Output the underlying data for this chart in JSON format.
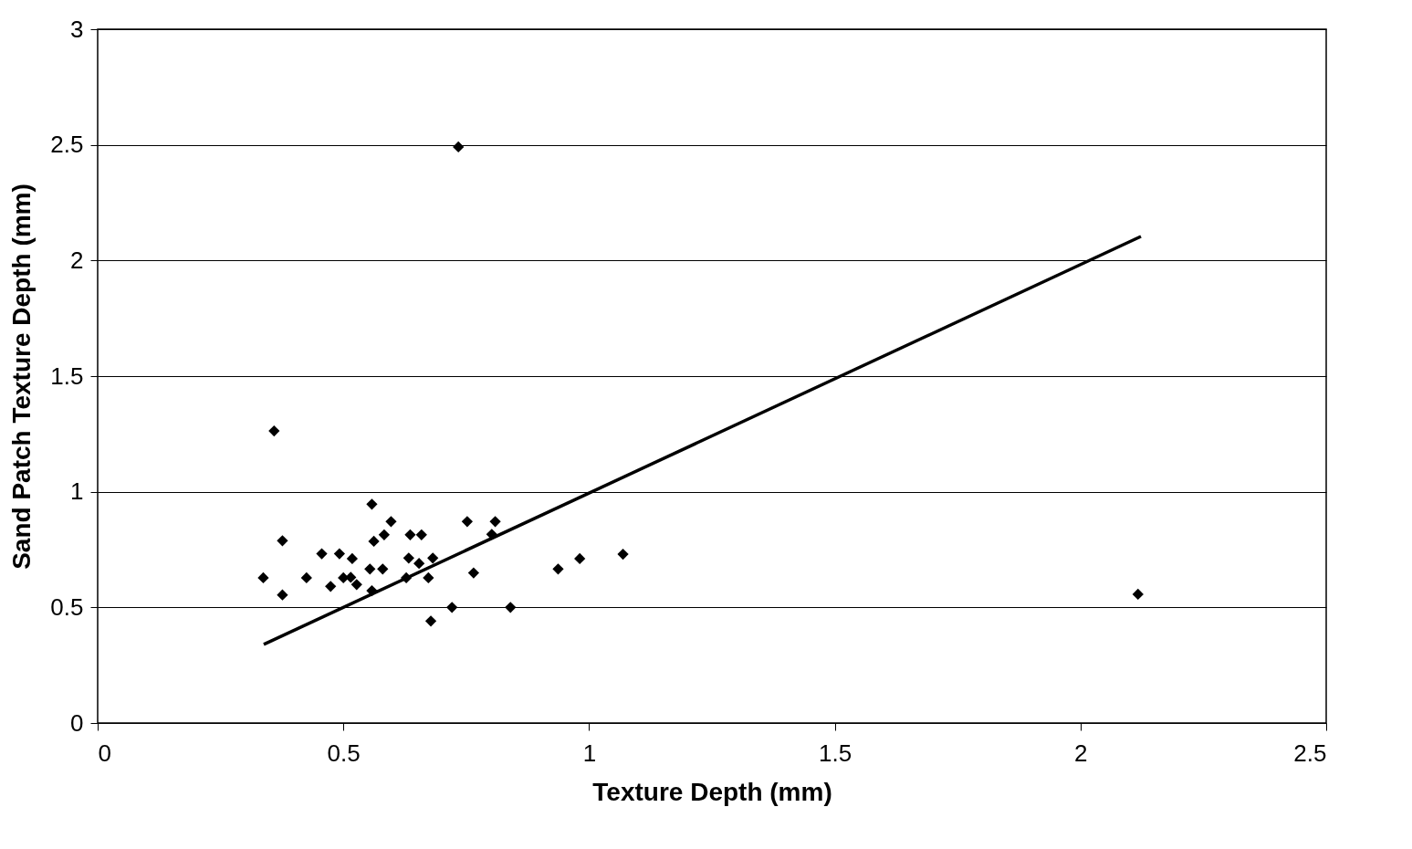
{
  "chart_data": {
    "type": "scatter",
    "xlabel": "Texture Depth (mm)",
    "ylabel": "Sand Patch Texture Depth (mm)",
    "xlim": [
      0,
      2.5
    ],
    "xticks": [
      0,
      0.5,
      1,
      1.5,
      2,
      2.5
    ],
    "ylim": [
      0,
      3
    ],
    "yticks": [
      0,
      0.5,
      1,
      1.5,
      2,
      2.5,
      3
    ],
    "grid": "y",
    "series": [
      {
        "marker": "diamond",
        "color": "#000000",
        "x": [
          0.359,
          0.558,
          0.597,
          0.376,
          0.583,
          0.562,
          0.636,
          0.659,
          0.752,
          0.809,
          0.802,
          0.456,
          0.492,
          0.518,
          0.633,
          0.682,
          0.654,
          0.981,
          1.069,
          0.937,
          0.554,
          0.58,
          0.765,
          0.337,
          0.425,
          0.5,
          0.515,
          0.527,
          0.474,
          0.628,
          0.673,
          0.558,
          0.376,
          0.721,
          0.84,
          0.678,
          0.734,
          2.117
        ],
        "values": [
          1.263,
          0.946,
          0.871,
          0.788,
          0.814,
          0.786,
          0.814,
          0.814,
          0.871,
          0.871,
          0.816,
          0.732,
          0.732,
          0.711,
          0.713,
          0.713,
          0.69,
          0.711,
          0.73,
          0.666,
          0.666,
          0.666,
          0.649,
          0.628,
          0.628,
          0.628,
          0.63,
          0.599,
          0.591,
          0.628,
          0.628,
          0.572,
          0.554,
          0.5,
          0.5,
          0.441,
          2.491,
          0.557
        ]
      },
      {
        "type": "line",
        "color": "#000000",
        "x": [
          0.338,
          2.123
        ],
        "values": [
          0.34,
          2.104
        ]
      }
    ]
  }
}
